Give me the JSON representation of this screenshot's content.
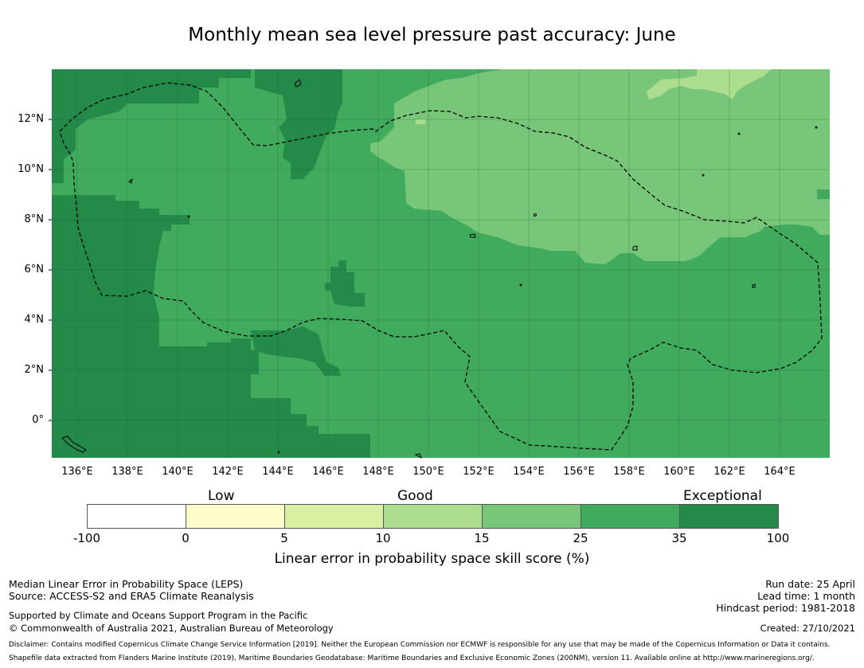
{
  "title": "Monthly mean sea level pressure past accuracy: June",
  "map": {
    "lat_labels": [
      "12°N",
      "10°N",
      "8°N",
      "6°N",
      "4°N",
      "2°N",
      "0°"
    ],
    "lon_labels": [
      "136°E",
      "138°E",
      "140°E",
      "142°E",
      "144°E",
      "146°E",
      "148°E",
      "150°E",
      "152°E",
      "154°E",
      "156°E",
      "158°E",
      "160°E",
      "162°E",
      "164°E"
    ],
    "boundary": "dashed EEZ line",
    "region_colors": {
      "exceptional": "#238a4a",
      "band_25_35": "#41ab5d",
      "band_15_25": "#78c679",
      "band_10_15": "#addd8e"
    }
  },
  "colorbar": {
    "categories": [
      "Low",
      "Good",
      "Exceptional"
    ],
    "ticks": [
      "-100",
      "0",
      "5",
      "10",
      "15",
      "25",
      "35",
      "100"
    ],
    "colors": [
      "#ffffff",
      "#ffffcc",
      "#d9f0a3",
      "#addd8e",
      "#78c679",
      "#41ab5d",
      "#238a4a"
    ],
    "label": "Linear error in probability space skill score (%)"
  },
  "info_left": {
    "line1": "Median Linear Error in Probability Space (LEPS)",
    "line2": "Source: ACCESS-S2 and ERA5 Climate Reanalysis",
    "line3": "Supported by Climate and Oceans Support Program in the Pacific",
    "line4": "© Commonwealth of Australia 2021, Australian Bureau of Meteorology"
  },
  "info_right": {
    "run_date": "Run date: 25 April",
    "lead_time": "Lead time: 1 month",
    "hindcast": "Hindcast period: 1981-2018",
    "created": "Created: 27/10/2021"
  },
  "disclaimer": {
    "line1": "Disclaimer: Contains modified Copernicus Climate Change Service Information [2019]. Neither the European Commission nor ECMWF is responsible for any use that may be made of the Copernicus Information or Data it contains.",
    "line2": "Shapefile data extracted from Flanders Marine Institute (2019), Maritime Boundaries Geodatabase: Maritime Boundaries and Exclusive Economic Zones (200NM), version 11. Available online at http://www.marineregions.org/."
  }
}
